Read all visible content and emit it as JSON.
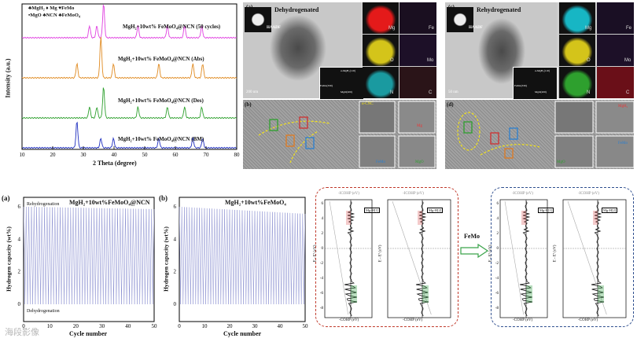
{
  "xrd": {
    "legend_line1": "♣MgH₂ ♦ Mg ♥FeMo",
    "legend_line2": "•MgO ♣NCN ♣FeMoO₄",
    "curves": [
      {
        "label": "MgH₂+10wt% FeMoO₄@NCN (50 cycles)",
        "color": "#e040e0"
      },
      {
        "label": "MgH₂+10wt% FeMoO₄@NCN (Abs)",
        "color": "#e08a20"
      },
      {
        "label": "MgH₂+10wt% FeMoO₄@NCN (Des)",
        "color": "#2ea02e"
      },
      {
        "label": "MgH₂+10wt% FeMoO₄@NCN (BM)",
        "color": "#2030c0"
      }
    ],
    "xlabel": "2 Theta (degree)",
    "ylabel": "Intensity (a.u.)",
    "xticks": [
      "10",
      "20",
      "30",
      "40",
      "50",
      "60",
      "70",
      "80"
    ]
  },
  "tem_a": {
    "panel": "(a)",
    "title": "Dehydrogenated",
    "haadf": "HAADF",
    "scale": "200 nm",
    "maps": [
      "Mg",
      "Fe",
      "O",
      "Mo",
      "N",
      "C"
    ],
    "saed": [
      "α-MgH₂(110)",
      "FeMo(330)",
      "MgO(200)"
    ]
  },
  "tem_c": {
    "panel": "(c)",
    "title": "Rehydrogenated",
    "haadf": "HAADF",
    "scale": "50 nm",
    "maps": [
      "Mg",
      "Fe",
      "O",
      "Mo",
      "N",
      "C"
    ],
    "saed": [
      "α-MgH₂(110)",
      "FeMo(330)",
      "MgO(200)"
    ]
  },
  "hrtem_b": {
    "panel": "(b)",
    "insets": [
      "α-CNC",
      "Mg",
      "FeMo",
      "MgO"
    ]
  },
  "hrtem_d": {
    "panel": "(d)",
    "insets": [
      "MgH₂",
      "FeMo",
      "MgO"
    ]
  },
  "cycle_a": {
    "panel": "(a)",
    "title": "MgH₂+10wt%FeMoO₄@NCN",
    "top": "Rehydrogenation",
    "bottom": "Dehydrogenation",
    "xlabel": "Cycle number",
    "ylabel": "Hydrogen capacity (wt%)",
    "yticks": [
      "6",
      "4",
      "2",
      "0"
    ],
    "xticks": [
      "0",
      "10",
      "20",
      "30",
      "40",
      "50"
    ]
  },
  "cycle_b": {
    "panel": "(b)",
    "title": "MgH₂+10wt%FeMoO₄",
    "xlabel": "Cycle number",
    "ylabel": "Hydrogen capacity (wt%)",
    "yticks": [
      "6",
      "4",
      "2",
      "0"
    ],
    "xticks": [
      "0",
      "10",
      "20",
      "30",
      "40",
      "50"
    ]
  },
  "cohp": {
    "arrow_label": "FeMo",
    "top_axis": "-ICOHP (eV)",
    "bottom_axis": "-COHP (eV)",
    "yaxis": "E - Eᶠ (eV)",
    "left_pair": [
      "Mg-H[1]",
      "Mg-H[2]"
    ],
    "right_pair": [
      "Mg-H[1]",
      "Mg-H[2]"
    ],
    "yticks": [
      "6",
      "4",
      "2",
      "0",
      "-2",
      "-4",
      "-6",
      "-8"
    ]
  },
  "watermark": "海段影像"
}
